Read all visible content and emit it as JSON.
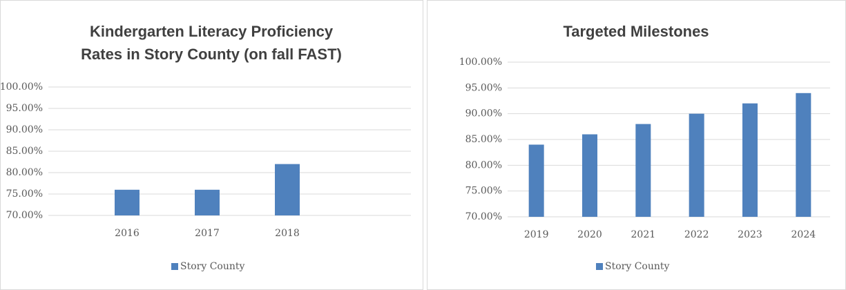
{
  "chart_data": [
    {
      "type": "bar",
      "title": "Kindergarten Literacy Proficiency Rates in Story County (on fall FAST)",
      "categories": [
        "2016",
        "2017",
        "2018"
      ],
      "series": [
        {
          "name": "Story County",
          "color": "#4f81bd",
          "values": [
            76,
            76,
            82
          ]
        }
      ],
      "ylim": [
        70,
        100
      ],
      "yticks": [
        {
          "value": 70,
          "label": "70.00%"
        },
        {
          "value": 75,
          "label": "75.00%"
        },
        {
          "value": 80,
          "label": "80.00%"
        },
        {
          "value": 85,
          "label": "85.00%"
        },
        {
          "value": 90,
          "label": "90.00%"
        },
        {
          "value": 95,
          "label": "95.00%"
        },
        {
          "value": 100,
          "label": "100.00%"
        }
      ],
      "grid": true,
      "legend": "bottom"
    },
    {
      "type": "bar",
      "title": "Targeted Milestones",
      "categories": [
        "2019",
        "2020",
        "2021",
        "2022",
        "2023",
        "2024"
      ],
      "series": [
        {
          "name": "Story County",
          "color": "#4f81bd",
          "values": [
            84,
            86,
            88,
            90,
            92,
            94
          ]
        }
      ],
      "ylim": [
        70,
        100
      ],
      "yticks": [
        {
          "value": 70,
          "label": "70.00%"
        },
        {
          "value": 75,
          "label": "75.00%"
        },
        {
          "value": 80,
          "label": "80.00%"
        },
        {
          "value": 85,
          "label": "85.00%"
        },
        {
          "value": 90,
          "label": "90.00%"
        },
        {
          "value": 95,
          "label": "95.00%"
        },
        {
          "value": 100,
          "label": "100.00%"
        }
      ],
      "grid": true,
      "legend": "bottom"
    }
  ]
}
